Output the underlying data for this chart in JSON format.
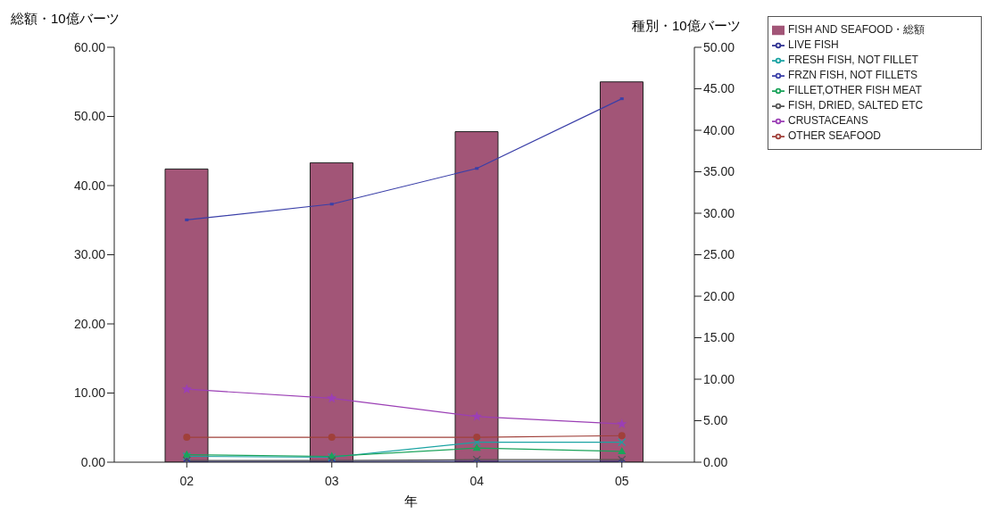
{
  "chart_data": {
    "type": "bar",
    "xlabel": "年",
    "ylabel": "総額・10億バーツ",
    "y2label": "種別・10億バーツ",
    "categories": [
      "02",
      "03",
      "04",
      "05"
    ],
    "series": [
      {
        "name": "FISH AND SEAFOOD・総額",
        "color": "#a25577",
        "values": [
          42.4,
          43.3,
          47.8,
          55.0
        ]
      },
      {
        "name": "LIVE  FISH",
        "type": "line",
        "axis": "y2",
        "marker": "diamond",
        "color": "#2e3192",
        "values": [
          0.1,
          0.1,
          0.1,
          0.1
        ]
      },
      {
        "name": "FRESH FISH, NOT FILLET",
        "type": "line",
        "axis": "y2",
        "marker": "cross",
        "color": "#1aa3a3",
        "values": [
          0.7,
          0.6,
          2.4,
          2.4
        ]
      },
      {
        "name": "FRZN  FISH, NOT FILLETS",
        "type": "line",
        "axis": "y2",
        "marker": "square",
        "color": "#3a3fa8",
        "values": [
          29.2,
          31.1,
          35.4,
          43.8
        ]
      },
      {
        "name": "FILLET,OTHER FISH MEAT",
        "type": "line",
        "axis": "y2",
        "marker": "triangle",
        "color": "#1aa35a",
        "values": [
          0.9,
          0.7,
          1.7,
          1.3
        ]
      },
      {
        "name": "FISH, DRIED, SALTED  ETC",
        "type": "line",
        "axis": "y2",
        "marker": "cross",
        "color": "#555555",
        "values": [
          0.2,
          0.2,
          0.3,
          0.3
        ]
      },
      {
        "name": "CRUSTACEANS",
        "type": "line",
        "axis": "y2",
        "marker": "star",
        "color": "#9b3fb5",
        "values": [
          8.8,
          7.7,
          5.5,
          4.6
        ]
      },
      {
        "name": "OTHER  SEAFOOD",
        "type": "line",
        "axis": "y2",
        "marker": "circle",
        "color": "#a0403a",
        "values": [
          3.0,
          3.0,
          3.0,
          3.2
        ]
      }
    ],
    "ylim": [
      0,
      60
    ],
    "yticks": [
      {
        "value": 0,
        "label": "0.00"
      },
      {
        "value": 10,
        "label": "10.00"
      },
      {
        "value": 20,
        "label": "20.00"
      },
      {
        "value": 30,
        "label": "30.00"
      },
      {
        "value": 40,
        "label": "40.00"
      },
      {
        "value": 50,
        "label": "50.00"
      },
      {
        "value": 60,
        "label": "60.00"
      }
    ],
    "y2lim": [
      0,
      50
    ],
    "y2ticks": [
      {
        "value": 0,
        "label": "0.00"
      },
      {
        "value": 5,
        "label": "5.00"
      },
      {
        "value": 10,
        "label": "10.00"
      },
      {
        "value": 15,
        "label": "15.00"
      },
      {
        "value": 20,
        "label": "20.00"
      },
      {
        "value": 25,
        "label": "25.00"
      },
      {
        "value": 30,
        "label": "30.00"
      },
      {
        "value": 35,
        "label": "35.00"
      },
      {
        "value": 40,
        "label": "40.00"
      },
      {
        "value": 45,
        "label": "45.00"
      },
      {
        "value": 50,
        "label": "50.00"
      }
    ],
    "grid": false,
    "legend": "top right"
  }
}
